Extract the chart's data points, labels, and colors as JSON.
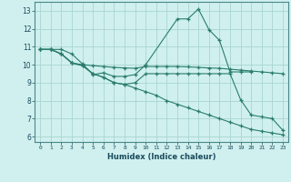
{
  "xlabel": "Humidex (Indice chaleur)",
  "background_color": "#cff0ee",
  "grid_color": "#a8d5d0",
  "line_color": "#2a7d6e",
  "xlim": [
    -0.5,
    23.5
  ],
  "ylim": [
    5.7,
    13.5
  ],
  "xticks": [
    0,
    1,
    2,
    3,
    4,
    5,
    6,
    7,
    8,
    9,
    10,
    11,
    12,
    13,
    14,
    15,
    16,
    17,
    18,
    19,
    20,
    21,
    22,
    23
  ],
  "yticks": [
    6,
    7,
    8,
    9,
    10,
    11,
    12,
    13
  ],
  "series": [
    {
      "x": [
        0,
        1,
        2,
        3,
        4,
        5,
        6,
        7,
        8,
        9,
        10,
        13,
        14,
        15,
        16,
        17,
        18,
        19,
        20
      ],
      "y": [
        10.85,
        10.85,
        10.85,
        10.6,
        10.05,
        9.45,
        9.55,
        9.35,
        9.35,
        9.45,
        10.0,
        12.55,
        12.55,
        13.1,
        11.95,
        11.35,
        9.6,
        9.6,
        9.6
      ]
    },
    {
      "x": [
        0,
        1,
        2,
        3,
        4,
        5,
        6,
        7,
        8,
        9,
        10,
        11,
        12,
        13,
        14,
        15,
        16,
        17,
        18,
        19,
        20,
        21,
        22,
        23
      ],
      "y": [
        10.85,
        10.85,
        10.6,
        10.1,
        10.0,
        9.95,
        9.9,
        9.85,
        9.82,
        9.8,
        9.9,
        9.9,
        9.9,
        9.9,
        9.88,
        9.85,
        9.82,
        9.8,
        9.75,
        9.7,
        9.65,
        9.6,
        9.55,
        9.5
      ]
    },
    {
      "x": [
        0,
        1,
        2,
        3,
        4,
        5,
        6,
        7,
        8,
        9,
        10,
        11,
        12,
        13,
        14,
        15,
        16,
        17,
        18,
        19,
        20,
        21,
        22,
        23
      ],
      "y": [
        10.85,
        10.85,
        10.6,
        10.1,
        9.95,
        9.5,
        9.3,
        9.0,
        8.9,
        9.0,
        9.5,
        9.5,
        9.5,
        9.5,
        9.5,
        9.5,
        9.5,
        9.5,
        9.5,
        8.05,
        7.2,
        7.1,
        7.0,
        6.35
      ]
    },
    {
      "x": [
        0,
        1,
        2,
        3,
        4,
        5,
        6,
        7,
        8,
        9,
        10,
        11,
        12,
        13,
        14,
        15,
        16,
        17,
        18,
        19,
        20,
        21,
        22,
        23
      ],
      "y": [
        10.85,
        10.85,
        10.6,
        10.1,
        9.95,
        9.5,
        9.3,
        9.0,
        8.9,
        8.7,
        8.5,
        8.3,
        8.0,
        7.8,
        7.6,
        7.4,
        7.2,
        7.0,
        6.8,
        6.6,
        6.4,
        6.3,
        6.2,
        6.1
      ]
    }
  ]
}
